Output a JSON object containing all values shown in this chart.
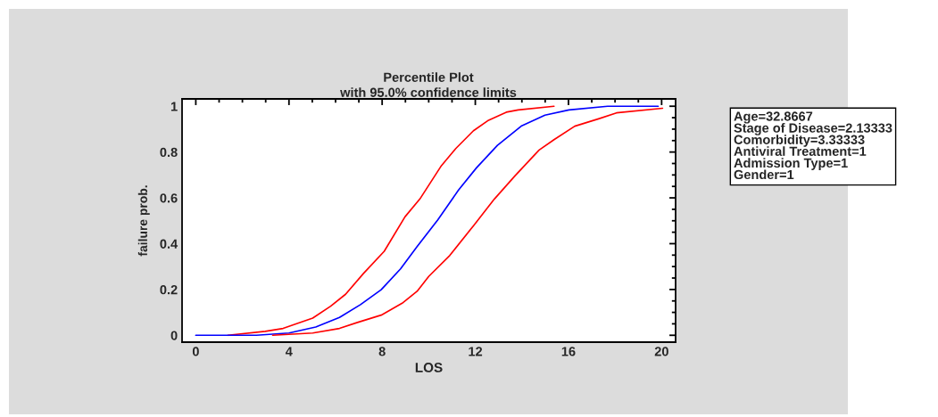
{
  "chart_data": {
    "type": "line",
    "title": "Percentile Plot",
    "subtitle": "with 95.0% confidence limits",
    "xlabel": "LOS",
    "ylabel": "failure prob.",
    "xlim": [
      -0.59,
      20.6
    ],
    "ylim": [
      -0.03,
      1.032
    ],
    "xticks": [
      0,
      4,
      8,
      12,
      16,
      20
    ],
    "yticks": [
      0,
      0.2,
      0.4,
      0.6,
      0.8,
      1
    ],
    "grid": false,
    "legend": false,
    "marker": "none",
    "line_style": "solid",
    "annotations": [
      "Age=32.8667\nStage of Disease=2.13333\nComorbidity=3.33333\nAntiviral Treatment=1\nAdmission Type=1\nGender=1"
    ],
    "series": [
      {
        "color": "#ff0000",
        "x": [
          1.38,
          2.98,
          3.75,
          5.02,
          5.79,
          6.43,
          7.2,
          8.09,
          8.98,
          9.62,
          10.52,
          11.16,
          11.92,
          12.57,
          13.33,
          13.84,
          15.38
        ],
        "values": [
          0,
          0.017,
          0.03,
          0.075,
          0.127,
          0.179,
          0.27,
          0.367,
          0.517,
          0.595,
          0.737,
          0.815,
          0.893,
          0.939,
          0.974,
          0.984,
          1.0
        ]
      },
      {
        "color": "#0000ff",
        "x": [
          0,
          2.6,
          4,
          5.15,
          6.17,
          7.07,
          7.96,
          8.79,
          9.5,
          10.39,
          11.28,
          12.05,
          12.95,
          13.97,
          14.99,
          16.02,
          17.68,
          19.85
        ],
        "values": [
          0,
          0,
          0.01,
          0.036,
          0.078,
          0.134,
          0.199,
          0.29,
          0.387,
          0.504,
          0.634,
          0.731,
          0.829,
          0.913,
          0.961,
          0.984,
          1.0,
          1.0
        ]
      },
      {
        "color": "#ff0000",
        "x": [
          3.3,
          5.02,
          6.17,
          6.94,
          7.96,
          8.86,
          9.5,
          10.0,
          10.9,
          11.92,
          12.82,
          13.72,
          14.74,
          15.38,
          16.27,
          17.29,
          18.06,
          20.04
        ],
        "values": [
          0,
          0.01,
          0.03,
          0.056,
          0.088,
          0.14,
          0.192,
          0.257,
          0.348,
          0.478,
          0.595,
          0.698,
          0.809,
          0.854,
          0.913,
          0.945,
          0.971,
          0.991
        ]
      }
    ]
  }
}
